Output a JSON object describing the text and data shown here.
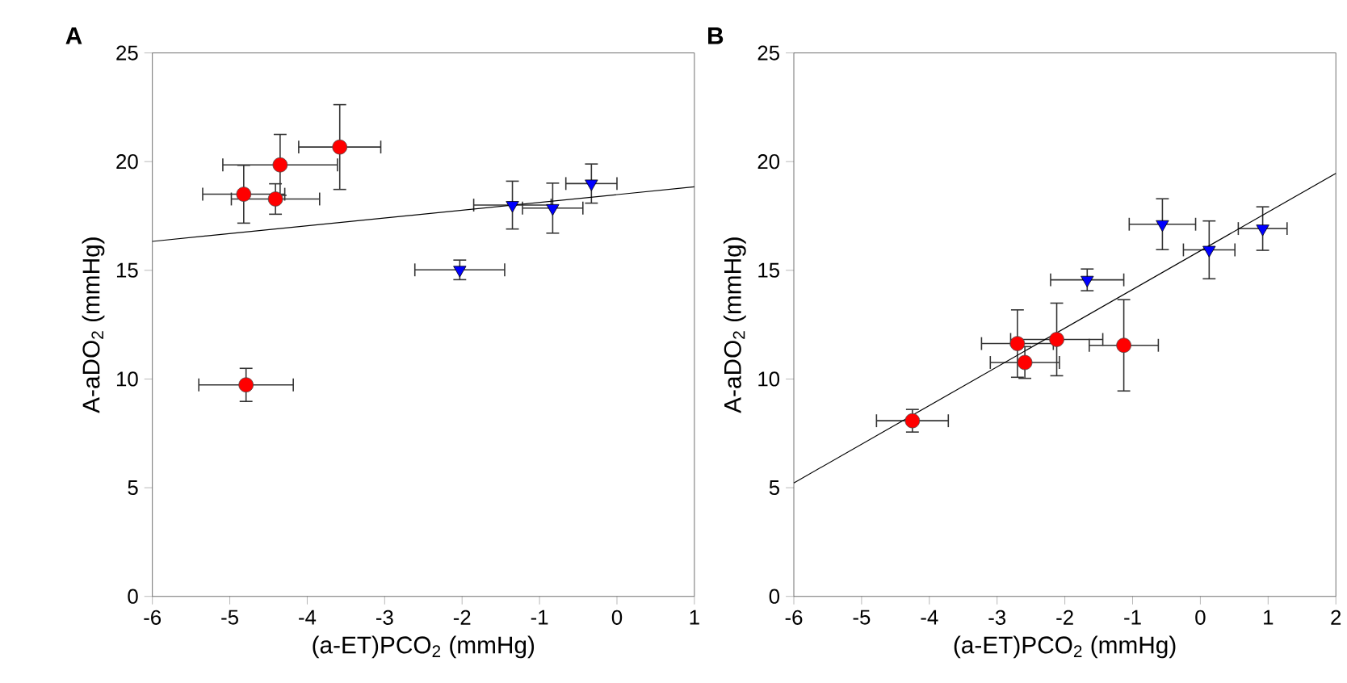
{
  "chart_data": [
    {
      "type": "scatter",
      "title": "A",
      "xlabel": "(a-ET)PCO$_{2}$ (mmHg)",
      "ylabel": "A-aDO$_{2}$ (mmHg)",
      "xlim": [
        -6,
        1
      ],
      "ylim": [
        0,
        25
      ],
      "xticks": [
        -6,
        -5,
        -4,
        -3,
        -2,
        -1,
        0,
        1
      ],
      "yticks": [
        0,
        5,
        10,
        15,
        20,
        25
      ],
      "grid": false,
      "series": [
        {
          "marker": "circle",
          "color": "#ff0000",
          "x": [
            -4.82,
            -4.35,
            -4.41,
            -3.58,
            -4.79
          ],
          "values": [
            18.5,
            19.85,
            18.28,
            20.67,
            9.73
          ],
          "xerrors": [
            0.53,
            0.74,
            0.57,
            0.53,
            0.61
          ],
          "errors": [
            1.33,
            1.4,
            0.7,
            1.95,
            0.76
          ]
        },
        {
          "marker": "triangle",
          "color": "#0000ff",
          "x": [
            -2.03,
            -1.35,
            -0.83,
            -0.33
          ],
          "values": [
            15.02,
            18.0,
            17.86,
            18.99
          ],
          "xerrors": [
            0.58,
            0.5,
            0.39,
            0.33
          ],
          "errors": [
            0.45,
            1.1,
            1.15,
            0.9
          ]
        },
        {
          "type": "line",
          "color": "#000000",
          "x": [
            -6,
            1
          ],
          "values": [
            16.33,
            18.84
          ]
        }
      ]
    },
    {
      "type": "scatter",
      "title": "B",
      "xlabel": "(a-ET)PCO$_{2}$ (mmHg)",
      "ylabel": "A-aDO$_{2}$ (mmHg)",
      "xlim": [
        -6,
        2
      ],
      "ylim": [
        0,
        25
      ],
      "xticks": [
        -6,
        -5,
        -4,
        -3,
        -2,
        -1,
        0,
        1,
        2
      ],
      "yticks": [
        0,
        5,
        10,
        15,
        20,
        25
      ],
      "grid": false,
      "series": [
        {
          "marker": "circle",
          "color": "#ff0000",
          "x": [
            -4.25,
            -2.7,
            -2.59,
            -2.12,
            -1.13
          ],
          "values": [
            8.08,
            11.63,
            10.76,
            11.82,
            11.55
          ],
          "xerrors": [
            0.53,
            0.53,
            0.51,
            0.68,
            0.51
          ],
          "errors": [
            0.52,
            1.55,
            0.73,
            1.67,
            2.1
          ]
        },
        {
          "marker": "triangle",
          "color": "#0000ff",
          "x": [
            -1.67,
            -0.56,
            0.13,
            0.92
          ],
          "values": [
            14.56,
            17.12,
            15.94,
            16.92
          ],
          "xerrors": [
            0.54,
            0.49,
            0.38,
            0.36
          ],
          "errors": [
            0.5,
            1.17,
            1.33,
            1.0
          ]
        },
        {
          "type": "line",
          "color": "#000000",
          "x": [
            -6,
            2
          ],
          "values": [
            5.22,
            19.46
          ]
        }
      ]
    }
  ]
}
